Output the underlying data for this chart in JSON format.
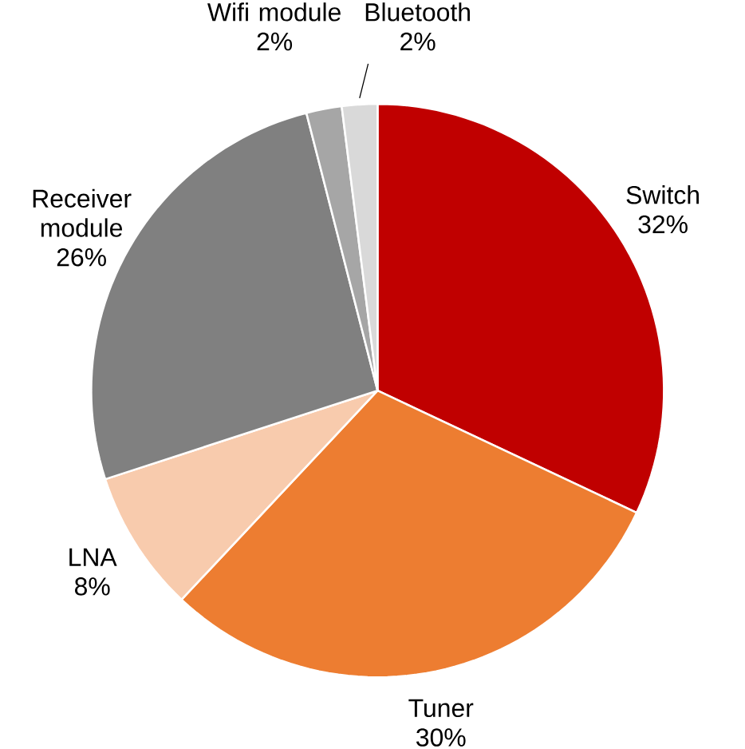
{
  "chart_data": {
    "type": "pie",
    "categories": [
      "Switch",
      "Tuner",
      "LNA",
      "Receiver module",
      "Wifi module",
      "Bluetooth"
    ],
    "values": [
      32,
      30,
      8,
      26,
      2,
      2
    ],
    "colors": [
      "#c00000",
      "#ed7d31",
      "#f8cbad",
      "#808080",
      "#a6a6a6",
      "#d9d9d9"
    ],
    "value_labels": [
      "32%",
      "30%",
      "8%",
      "26%",
      "2%",
      "2%"
    ]
  }
}
